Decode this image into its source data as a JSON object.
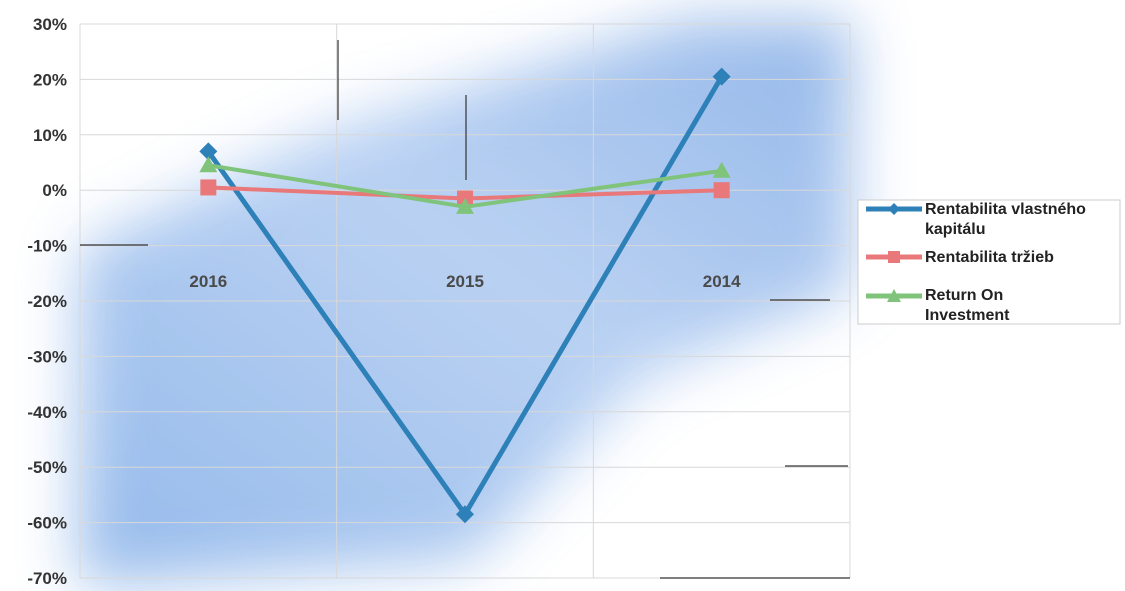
{
  "chart_data": {
    "type": "line",
    "categories": [
      "2016",
      "2015",
      "2014"
    ],
    "series": [
      {
        "name": "Rentabilita vlastného kapitálu",
        "values": [
          7,
          -58.5,
          20.5
        ],
        "color": "#2e80b8",
        "marker": "diamond"
      },
      {
        "name": "Rentabilita tržieb",
        "values": [
          0.5,
          -1.5,
          0
        ],
        "color": "#e8787a",
        "marker": "square"
      },
      {
        "name": "Return On Investment",
        "values": [
          4.5,
          -3,
          3.5
        ],
        "color": "#7fc47a",
        "marker": "triangle"
      }
    ],
    "ylim": [
      -70,
      30
    ],
    "yticks": [
      "30%",
      "20%",
      "10%",
      "0%",
      "-10%",
      "-20%",
      "-30%",
      "-40%",
      "-50%",
      "-60%",
      "-70%"
    ],
    "legend_position": "right",
    "legend_labels": [
      "Rentabilita vlastného",
      "kapitálu",
      "Rentabilita tržieb",
      "Return On",
      "Investment"
    ],
    "grid": true
  }
}
